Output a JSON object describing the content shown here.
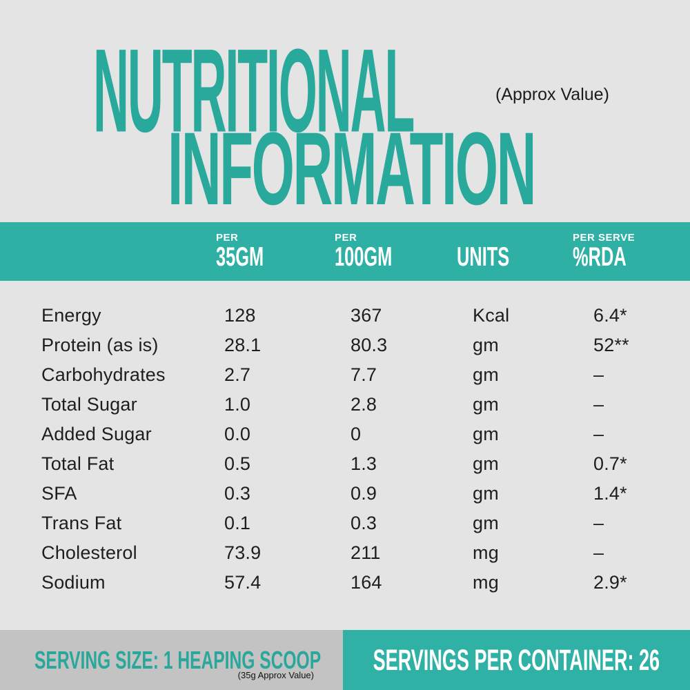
{
  "title": {
    "line1": "NUTRITIONAL",
    "line2": "INFORMATION",
    "approx_note": "(Approx Value)"
  },
  "colors": {
    "teal_band": "#2FB0A4",
    "teal_title": "#29A89C",
    "background": "#E4E4E4",
    "gray_band": "#C3C3C3",
    "body_text": "#1E1E1E",
    "header_text": "#FFFFFF"
  },
  "table": {
    "columns": [
      {
        "kicker": "PER",
        "label": "35GM"
      },
      {
        "kicker": "PER",
        "label": "100GM"
      },
      {
        "kicker": "",
        "label": "UNITS"
      },
      {
        "kicker": "PER SERVE",
        "label": "%RDA"
      }
    ],
    "rows": [
      {
        "label": "Energy",
        "per_35gm": "128",
        "per_100gm": "367",
        "units": "Kcal",
        "rda": "6.4*"
      },
      {
        "label": "Protein (as is)",
        "per_35gm": "28.1",
        "per_100gm": "80.3",
        "units": "gm",
        "rda": "52**"
      },
      {
        "label": "Carbohydrates",
        "per_35gm": "2.7",
        "per_100gm": "7.7",
        "units": "gm",
        "rda": "–"
      },
      {
        "label": "Total Sugar",
        "per_35gm": "1.0",
        "per_100gm": "2.8",
        "units": "gm",
        "rda": "–"
      },
      {
        "label": "Added Sugar",
        "per_35gm": "0.0",
        "per_100gm": "0",
        "units": "gm",
        "rda": "–"
      },
      {
        "label": "Total Fat",
        "per_35gm": "0.5",
        "per_100gm": "1.3",
        "units": "gm",
        "rda": "0.7*"
      },
      {
        "label": "SFA",
        "per_35gm": "0.3",
        "per_100gm": "0.9",
        "units": "gm",
        "rda": "1.4*"
      },
      {
        "label": "Trans Fat",
        "per_35gm": "0.1",
        "per_100gm": "0.3",
        "units": "gm",
        "rda": "–"
      },
      {
        "label": "Cholesterol",
        "per_35gm": "73.9",
        "per_100gm": "211",
        "units": "mg",
        "rda": "–"
      },
      {
        "label": "Sodium",
        "per_35gm": "57.4",
        "per_100gm": "164",
        "units": "mg",
        "rda": "2.9*"
      }
    ]
  },
  "footer": {
    "serving_size": "SERVING SIZE: 1 HEAPING SCOOP",
    "serving_size_note": "(35g Approx Value)",
    "servings_per_container": "SERVINGS PER CONTAINER: 26"
  }
}
